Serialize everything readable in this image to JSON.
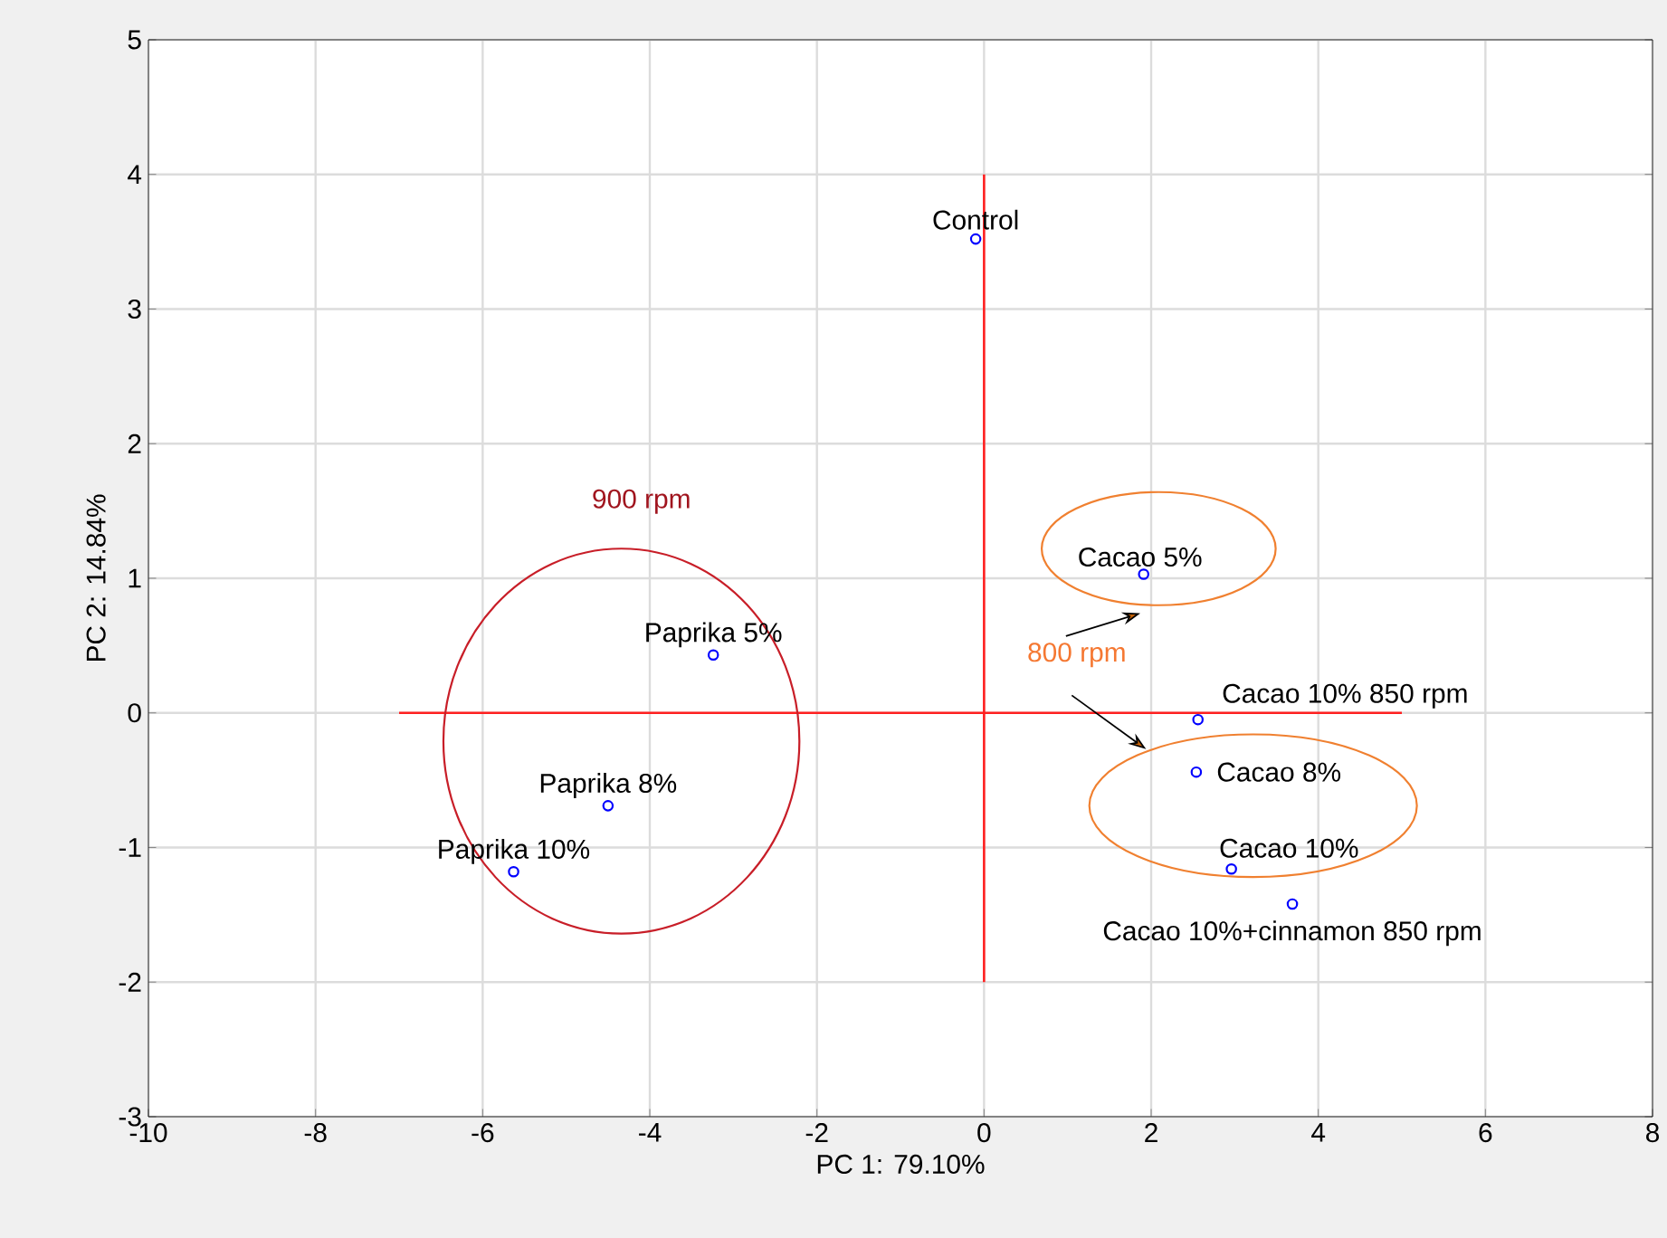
{
  "chart_data": {
    "type": "scatter",
    "xlabel": "PC 1: 79.10%",
    "ylabel": "PC 2: 14.84%",
    "xlim": [
      -10,
      8
    ],
    "ylim": [
      -3,
      5
    ],
    "xticks": [
      -10,
      -8,
      -6,
      -4,
      -2,
      0,
      2,
      4,
      6,
      8
    ],
    "yticks": [
      -3,
      -2,
      -1,
      0,
      1,
      2,
      3,
      4,
      5
    ],
    "grid": true,
    "series": [
      {
        "color": "#0000ff",
        "marker": "circle",
        "x": [
          -0.1,
          1.91,
          -3.24,
          -4.5,
          -5.63,
          2.56,
          2.54,
          2.96,
          3.69
        ],
        "values": [
          3.52,
          1.03,
          0.43,
          -0.69,
          -1.18,
          -0.05,
          -0.44,
          -1.16,
          -1.42
        ]
      },
      {
        "type": "line",
        "color": "#ff2020",
        "x": [
          -7,
          5
        ],
        "values": [
          0,
          0
        ]
      },
      {
        "type": "line",
        "color": "#ff2020",
        "x": [
          0,
          0
        ],
        "values": [
          -2,
          4
        ]
      }
    ],
    "annotations": [
      {
        "text": "Control",
        "x": -0.1,
        "y": 3.52
      },
      {
        "text": "Cacao 5%",
        "x": 1.91,
        "y": 1.03
      },
      {
        "text": "Paprika 5%",
        "x": -3.24,
        "y": 0.43
      },
      {
        "text": "Paprika 8%",
        "x": -4.5,
        "y": -0.69
      },
      {
        "text": "Paprika 10%",
        "x": -5.63,
        "y": -1.18
      },
      {
        "text": "Cacao 10% 850 rpm",
        "x": 2.56,
        "y": -0.05
      },
      {
        "text": "Cacao 8%",
        "x": 2.54,
        "y": -0.44
      },
      {
        "text": "Cacao 10%",
        "x": 2.96,
        "y": -1.16
      },
      {
        "text": "Cacao 10%+cinnamon 850 rpm",
        "x": 3.69,
        "y": -1.42
      },
      "900 rpm",
      "800 rpm"
    ]
  }
}
